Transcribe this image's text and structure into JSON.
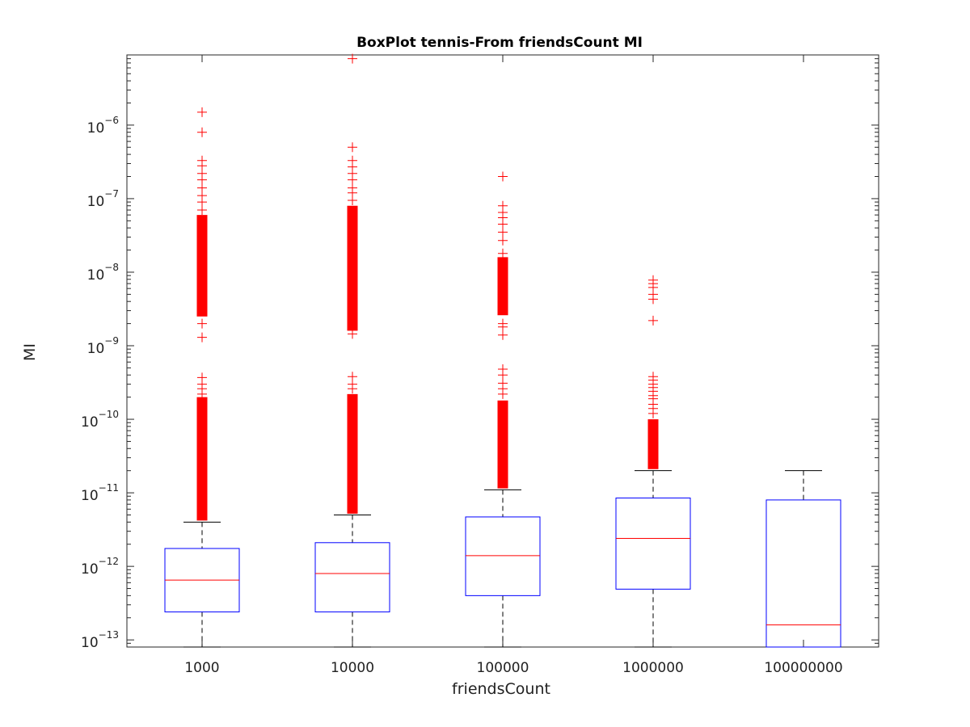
{
  "chart_data": {
    "type": "box",
    "title": "BoxPlot tennis-From friendsCount MI",
    "xlabel": "friendsCount",
    "ylabel": "MI",
    "y_scale": "log",
    "ylim": [
      8e-14,
      9e-06
    ],
    "grid": false,
    "categories": [
      "1000",
      "10000",
      "100000",
      "1000000",
      "100000000"
    ],
    "y_ticks": [
      {
        "value": 1e-13,
        "base": "10",
        "exp": "−13"
      },
      {
        "value": 1e-12,
        "base": "10",
        "exp": "−12"
      },
      {
        "value": 1e-11,
        "base": "10",
        "exp": "−11"
      },
      {
        "value": 1e-10,
        "base": "10",
        "exp": "−10"
      },
      {
        "value": 1e-09,
        "base": "10",
        "exp": "−9"
      },
      {
        "value": 1e-08,
        "base": "10",
        "exp": "−8"
      },
      {
        "value": 1e-07,
        "base": "10",
        "exp": "−7"
      },
      {
        "value": 1e-06,
        "base": "10",
        "exp": "−6"
      }
    ],
    "boxes": [
      {
        "category": "1000",
        "whisker_low": 8e-14,
        "q1": 2.4e-13,
        "median": 6.5e-13,
        "q3": 1.75e-12,
        "whisker_high": 4e-12,
        "outlier_bands": [
          [
            4.2e-12,
            2e-10
          ],
          [
            2.5e-09,
            6e-08
          ]
        ],
        "outliers": [
          2.2e-10,
          2.6e-10,
          3e-10,
          3.7e-10,
          1.3e-09,
          2e-09,
          7e-08,
          9e-08,
          1.1e-07,
          1.4e-07,
          1.8e-07,
          2.2e-07,
          2.8e-07,
          3.3e-07,
          8e-07,
          1.5e-06
        ]
      },
      {
        "category": "10000",
        "whisker_low": 8e-14,
        "q1": 2.4e-13,
        "median": 8e-13,
        "q3": 2.1e-12,
        "whisker_high": 5e-12,
        "outlier_bands": [
          [
            5.2e-12,
            2.2e-10
          ],
          [
            1.6e-09,
            8e-08
          ]
        ],
        "outliers": [
          2.6e-10,
          3e-10,
          3.8e-10,
          1.45e-09,
          9.5e-08,
          1.2e-07,
          1.4e-07,
          1.8e-07,
          2.2e-07,
          2.7e-07,
          3.3e-07,
          5e-07,
          8e-06
        ]
      },
      {
        "category": "100000",
        "whisker_low": 8e-14,
        "q1": 4e-13,
        "median": 1.4e-12,
        "q3": 4.7e-12,
        "whisker_high": 1.1e-11,
        "outlier_bands": [
          [
            1.15e-11,
            1.8e-10
          ],
          [
            2.6e-09,
            1.6e-08
          ]
        ],
        "outliers": [
          2.2e-10,
          2.6e-10,
          3.1e-10,
          4e-10,
          4.8e-10,
          1.4e-09,
          1.8e-09,
          2e-09,
          1.8e-08,
          2.7e-08,
          3.5e-08,
          4.5e-08,
          5.5e-08,
          6.5e-08,
          8e-08,
          2e-07
        ]
      },
      {
        "category": "1000000",
        "whisker_low": 8e-14,
        "q1": 4.9e-13,
        "median": 2.4e-12,
        "q3": 8.5e-12,
        "whisker_high": 2e-11,
        "outlier_bands": [
          [
            2.1e-11,
            1e-10
          ]
        ],
        "outliers": [
          1.2e-10,
          1.4e-10,
          1.6e-10,
          1.9e-10,
          2.1e-10,
          2.4e-10,
          2.7e-10,
          3e-10,
          3.4e-10,
          3.8e-10,
          2.2e-09,
          4.3e-09,
          5e-09,
          6.2e-09,
          7e-09,
          7.8e-09
        ]
      },
      {
        "category": "100000000",
        "whisker_low": 8e-14,
        "q1": 8e-14,
        "median": 1.6e-13,
        "q3": 8e-12,
        "whisker_high": 2e-11,
        "outlier_bands": [],
        "outliers": []
      }
    ],
    "colors": {
      "box": "#0000ff",
      "median": "#ff0000",
      "outlier": "#ff0000",
      "whisker": "#000000",
      "axes": "#262626"
    }
  }
}
